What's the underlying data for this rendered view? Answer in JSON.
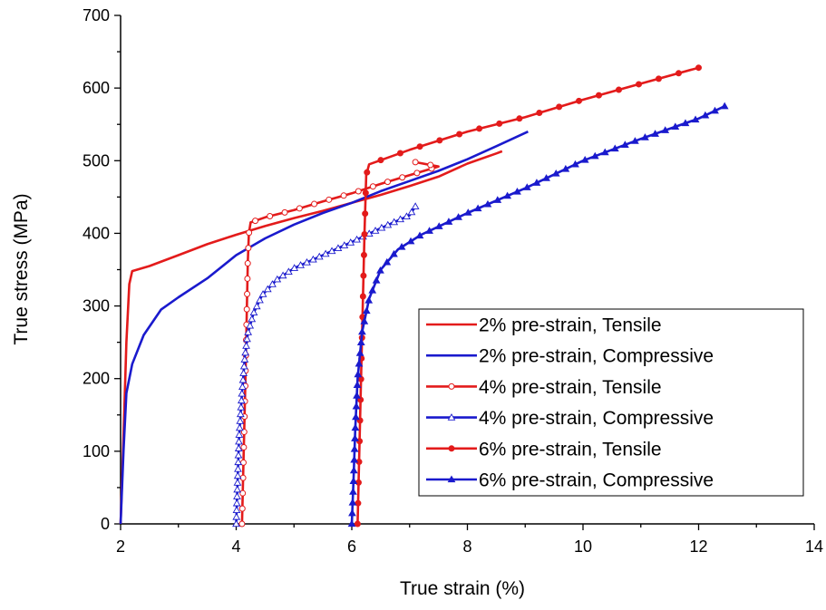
{
  "chart_data": {
    "type": "line",
    "title": "",
    "xlabel": "True strain (%)",
    "ylabel": "True stress (MPa)",
    "xlim": [
      2,
      14
    ],
    "ylim": [
      0,
      700
    ],
    "xticks": [
      "2",
      "4",
      "6",
      "8",
      "10",
      "12",
      "14"
    ],
    "yticks": [
      "0",
      "100",
      "200",
      "300",
      "400",
      "500",
      "600",
      "700"
    ],
    "grid": false,
    "legend_position": "bottom-right",
    "series": [
      {
        "name": "2% pre-strain, Tensile",
        "color": "#e31b1b",
        "marker": "none",
        "points": [
          [
            2.0,
            0
          ],
          [
            2.05,
            120
          ],
          [
            2.1,
            250
          ],
          [
            2.15,
            330
          ],
          [
            2.2,
            348
          ],
          [
            2.5,
            355
          ],
          [
            3,
            370
          ],
          [
            3.5,
            385
          ],
          [
            4,
            398
          ],
          [
            4.5,
            410
          ],
          [
            5,
            421
          ],
          [
            5.5,
            431
          ],
          [
            6,
            442
          ],
          [
            6.5,
            453
          ],
          [
            7,
            465
          ],
          [
            7.5,
            478
          ],
          [
            8,
            496
          ],
          [
            8.5,
            510
          ],
          [
            8.6,
            513
          ]
        ]
      },
      {
        "name": "2% pre-strain, Compressive",
        "color": "#1a1acd",
        "marker": "none",
        "points": [
          [
            2.0,
            0
          ],
          [
            2.05,
            100
          ],
          [
            2.1,
            180
          ],
          [
            2.2,
            220
          ],
          [
            2.4,
            260
          ],
          [
            2.7,
            295
          ],
          [
            3,
            312
          ],
          [
            3.5,
            338
          ],
          [
            4,
            370
          ],
          [
            4.5,
            393
          ],
          [
            5,
            412
          ],
          [
            5.5,
            428
          ],
          [
            6,
            442
          ],
          [
            6.5,
            458
          ],
          [
            7,
            472
          ],
          [
            7.5,
            486
          ],
          [
            8,
            502
          ],
          [
            8.5,
            520
          ],
          [
            9.05,
            540
          ]
        ]
      },
      {
        "name": "4% pre-strain, Tensile",
        "color": "#e31b1b",
        "marker": "open-circle",
        "points": [
          [
            4.1,
            0
          ],
          [
            4.13,
            100
          ],
          [
            4.16,
            200
          ],
          [
            4.18,
            280
          ],
          [
            4.2,
            360
          ],
          [
            4.22,
            400
          ],
          [
            4.25,
            415
          ],
          [
            4.5,
            422
          ],
          [
            5,
            432
          ],
          [
            5.5,
            444
          ],
          [
            6,
            455
          ],
          [
            6.5,
            468
          ],
          [
            7,
            480
          ],
          [
            7.5,
            492
          ],
          [
            7.1,
            498
          ]
        ]
      },
      {
        "name": "4% pre-strain, Compressive",
        "color": "#1a1acd",
        "marker": "open-triangle",
        "points": [
          [
            4.0,
            0
          ],
          [
            4.02,
            50
          ],
          [
            4.05,
            120
          ],
          [
            4.1,
            180
          ],
          [
            4.15,
            230
          ],
          [
            4.2,
            262
          ],
          [
            4.3,
            290
          ],
          [
            4.45,
            315
          ],
          [
            4.7,
            336
          ],
          [
            5,
            352
          ],
          [
            5.5,
            370
          ],
          [
            6,
            388
          ],
          [
            6.5,
            407
          ],
          [
            7,
            425
          ],
          [
            7.1,
            437
          ]
        ]
      },
      {
        "name": "6% pre-strain, Tensile",
        "color": "#e31b1b",
        "marker": "filled-circle",
        "points": [
          [
            6.1,
            0
          ],
          [
            6.13,
            100
          ],
          [
            6.16,
            200
          ],
          [
            6.19,
            300
          ],
          [
            6.22,
            400
          ],
          [
            6.25,
            480
          ],
          [
            6.3,
            495
          ],
          [
            7,
            515
          ],
          [
            8,
            540
          ],
          [
            9,
            560
          ],
          [
            10,
            584
          ],
          [
            11,
            606
          ],
          [
            12,
            628
          ]
        ]
      },
      {
        "name": "6% pre-strain, Compressive",
        "color": "#1a1acd",
        "marker": "filled-triangle",
        "points": [
          [
            6.0,
            0
          ],
          [
            6.03,
            60
          ],
          [
            6.06,
            130
          ],
          [
            6.1,
            200
          ],
          [
            6.18,
            265
          ],
          [
            6.3,
            310
          ],
          [
            6.5,
            350
          ],
          [
            6.8,
            378
          ],
          [
            7.2,
            398
          ],
          [
            8,
            428
          ],
          [
            9,
            462
          ],
          [
            10,
            500
          ],
          [
            11,
            530
          ],
          [
            12,
            558
          ],
          [
            12.45,
            575
          ]
        ]
      }
    ]
  }
}
